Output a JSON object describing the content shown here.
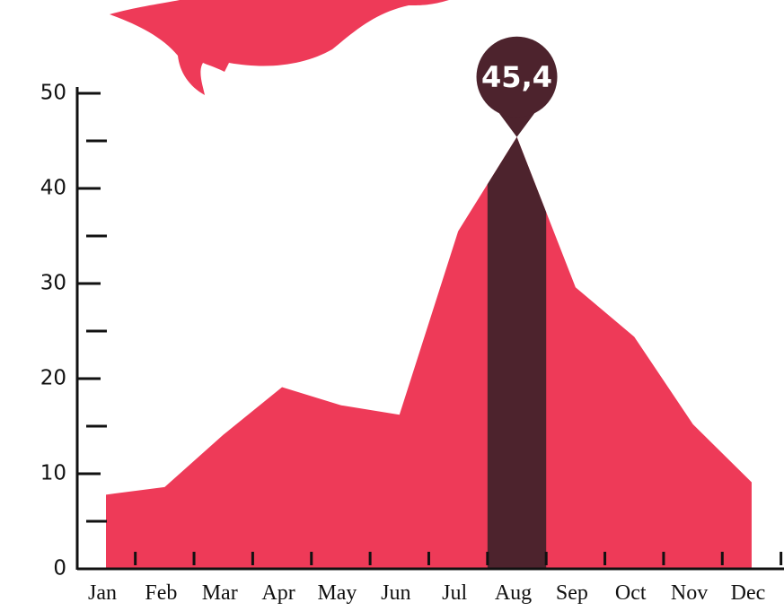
{
  "chart_data": {
    "type": "area",
    "categories": [
      "Jan",
      "Feb",
      "Mar",
      "Apr",
      "May",
      "Jun",
      "Jul",
      "Aug",
      "Sep",
      "Oct",
      "Nov",
      "Dec"
    ],
    "values": [
      7.8,
      8.6,
      14.1,
      19.1,
      17.2,
      16.2,
      35.5,
      45.4,
      29.6,
      24.4,
      15.2,
      9.1
    ],
    "value_labels": [
      null,
      null,
      null,
      null,
      null,
      null,
      null,
      "45,4",
      null,
      null,
      null,
      null
    ],
    "color": "#ee3a58",
    "highlight_color": "#4d232d",
    "ylim": [
      0,
      50
    ],
    "yticks": [
      0,
      10,
      20,
      30,
      40,
      50
    ],
    "yminor_ticks": [
      5,
      15,
      25,
      35,
      45
    ]
  }
}
